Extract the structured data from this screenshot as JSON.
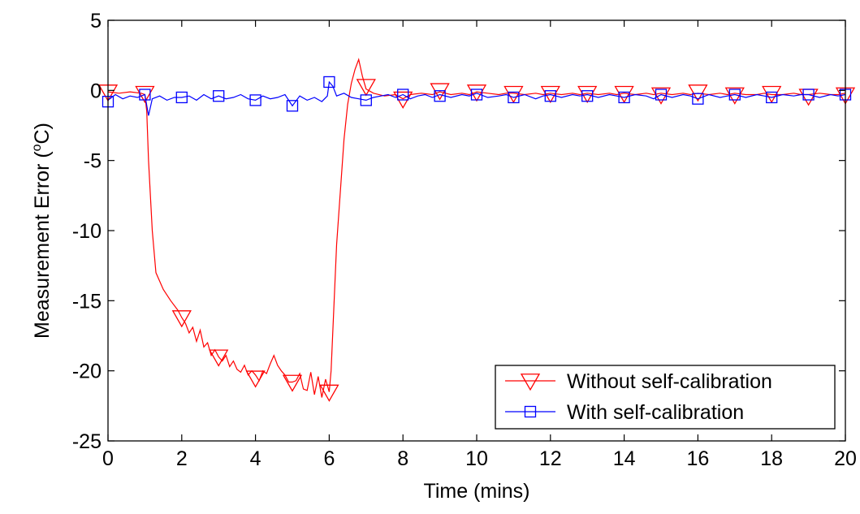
{
  "chart_data": {
    "type": "line",
    "xlabel": "Time (mins)",
    "ylabel_prefix": "Measurement Error (",
    "ylabel_sup": "o",
    "ylabel_suffix": "C)",
    "xlim": [
      0,
      20
    ],
    "ylim": [
      -25,
      5
    ],
    "xticks": [
      0,
      2,
      4,
      6,
      8,
      10,
      12,
      14,
      16,
      18,
      20
    ],
    "yticks": [
      5,
      0,
      -5,
      -10,
      -15,
      -20,
      -25
    ],
    "grid": false,
    "legend_position": "bottom-right",
    "series": [
      {
        "name": "Without self-calibration",
        "color": "#ff0000",
        "marker": "triangle-down",
        "x": [
          0,
          0.3,
          0.6,
          0.9,
          1.0,
          1.05,
          1.1,
          1.2,
          1.3,
          1.5,
          1.7,
          1.9,
          2.0,
          2.1,
          2.2,
          2.3,
          2.4,
          2.5,
          2.6,
          2.7,
          2.8,
          2.9,
          3.0,
          3.1,
          3.2,
          3.3,
          3.4,
          3.5,
          3.6,
          3.7,
          3.8,
          3.9,
          4.0,
          4.1,
          4.2,
          4.3,
          4.4,
          4.5,
          4.6,
          4.7,
          4.8,
          4.9,
          5.0,
          5.1,
          5.2,
          5.3,
          5.4,
          5.5,
          5.6,
          5.7,
          5.8,
          5.9,
          6.0,
          6.05,
          6.2,
          6.4,
          6.5,
          6.6,
          6.7,
          6.8,
          6.9,
          7.0,
          7.2,
          7.5,
          7.8,
          8.0,
          8.2,
          8.5,
          8.8,
          9.0,
          9.3,
          9.6,
          9.8,
          10.0,
          10.3,
          10.6,
          10.8,
          11.0,
          11.3,
          11.6,
          11.8,
          12.0,
          12.3,
          12.6,
          12.8,
          13.0,
          13.3,
          13.6,
          13.8,
          14.0,
          14.3,
          14.6,
          14.8,
          15.0,
          15.3,
          15.6,
          15.8,
          16.0,
          16.3,
          16.6,
          16.8,
          17.0,
          17.3,
          17.6,
          17.8,
          18.0,
          18.3,
          18.6,
          18.8,
          19.0,
          19.3,
          19.6,
          19.8,
          20.0
        ],
        "y": [
          -0.1,
          -0.2,
          -0.1,
          -0.2,
          -0.3,
          -1.5,
          -5.0,
          -10.0,
          -13.0,
          -14.2,
          -15.0,
          -15.7,
          -16.2,
          -16.6,
          -17.3,
          -16.9,
          -17.9,
          -17.1,
          -18.3,
          -18.0,
          -18.9,
          -18.5,
          -19.0,
          -19.3,
          -18.9,
          -19.7,
          -19.3,
          -19.9,
          -20.1,
          -19.6,
          -20.3,
          -20.0,
          -20.3,
          -20.7,
          -20.0,
          -20.2,
          -19.5,
          -18.9,
          -19.6,
          -20.0,
          -20.3,
          -20.8,
          -20.8,
          -20.7,
          -20.2,
          -21.3,
          -21.4,
          -20.1,
          -21.7,
          -20.4,
          -21.9,
          -20.6,
          -21.5,
          -20.0,
          -11.0,
          -3.5,
          -1.0,
          0.5,
          1.5,
          2.2,
          1.0,
          0.1,
          -0.2,
          -0.4,
          -0.3,
          -0.6,
          -0.3,
          -0.2,
          -0.3,
          -0.1,
          -0.3,
          -0.2,
          -0.3,
          -0.1,
          -0.2,
          -0.3,
          -0.2,
          -0.2,
          -0.3,
          -0.2,
          -0.3,
          -0.2,
          -0.3,
          -0.2,
          -0.3,
          -0.2,
          -0.3,
          -0.2,
          -0.3,
          -0.2,
          -0.3,
          -0.2,
          -0.3,
          -0.2,
          -0.3,
          -0.2,
          -0.3,
          -0.2,
          -0.3,
          -0.2,
          -0.3,
          -0.2,
          -0.3,
          -0.3,
          -0.2,
          -0.3,
          -0.3,
          -0.2,
          -0.3,
          -0.3,
          -0.2,
          -0.3,
          -0.3,
          -0.2
        ],
        "marker_x": [
          0,
          1,
          2,
          3,
          4,
          5,
          6,
          7,
          8,
          9,
          10,
          11,
          12,
          13,
          14,
          15,
          16,
          17,
          18,
          19,
          20
        ],
        "marker_y": [
          -0.1,
          -0.2,
          -16.2,
          -19.0,
          -20.5,
          -20.8,
          -21.5,
          0.3,
          -0.6,
          0.0,
          -0.1,
          -0.2,
          -0.2,
          -0.2,
          -0.2,
          -0.3,
          -0.1,
          -0.3,
          -0.2,
          -0.4,
          -0.3
        ]
      },
      {
        "name": "With self-calibration",
        "color": "#0000ff",
        "marker": "square",
        "x": [
          0,
          0.2,
          0.4,
          0.6,
          0.8,
          1.0,
          1.1,
          1.2,
          1.4,
          1.6,
          1.8,
          2.0,
          2.2,
          2.4,
          2.6,
          2.8,
          3.0,
          3.2,
          3.4,
          3.6,
          3.8,
          4.0,
          4.2,
          4.4,
          4.6,
          4.8,
          5.0,
          5.2,
          5.4,
          5.6,
          5.8,
          5.95,
          6.0,
          6.1,
          6.2,
          6.4,
          6.6,
          6.8,
          7.0,
          7.2,
          7.4,
          7.6,
          7.8,
          8.0,
          8.2,
          8.4,
          8.6,
          8.8,
          9.0,
          9.3,
          9.6,
          9.8,
          10.0,
          10.3,
          10.6,
          10.8,
          11.0,
          11.3,
          11.6,
          11.8,
          12.0,
          12.3,
          12.6,
          12.8,
          13.0,
          13.3,
          13.6,
          13.8,
          14.0,
          14.3,
          14.6,
          14.8,
          15.0,
          15.3,
          15.6,
          15.8,
          16.0,
          16.3,
          16.6,
          16.8,
          17.0,
          17.3,
          17.6,
          17.8,
          18.0,
          18.3,
          18.6,
          18.8,
          19.0,
          19.3,
          19.6,
          19.8,
          20.0
        ],
        "y": [
          -0.7,
          -0.3,
          -0.6,
          -0.4,
          -0.5,
          -0.3,
          -1.8,
          -0.6,
          -0.4,
          -0.7,
          -0.5,
          -0.5,
          -0.4,
          -0.7,
          -0.3,
          -0.6,
          -0.4,
          -0.6,
          -0.5,
          -0.3,
          -0.6,
          -0.7,
          -0.4,
          -0.6,
          -0.5,
          -0.3,
          -1.1,
          -0.4,
          -0.7,
          -0.5,
          -0.8,
          -0.4,
          0.6,
          0.3,
          -0.4,
          -0.2,
          -0.5,
          -0.6,
          -0.7,
          -0.5,
          -0.4,
          -0.3,
          -0.5,
          -0.3,
          -0.6,
          -0.4,
          -0.3,
          -0.5,
          -0.3,
          -0.5,
          -0.3,
          -0.4,
          -0.2,
          -0.5,
          -0.4,
          -0.3,
          -0.5,
          -0.3,
          -0.6,
          -0.4,
          -0.3,
          -0.5,
          -0.3,
          -0.4,
          -0.3,
          -0.5,
          -0.3,
          -0.4,
          -0.5,
          -0.3,
          -0.4,
          -0.6,
          -0.3,
          -0.5,
          -0.3,
          -0.4,
          -0.6,
          -0.3,
          -0.5,
          -0.4,
          -0.3,
          -0.5,
          -0.3,
          -0.4,
          -0.5,
          -0.3,
          -0.4,
          -0.3,
          -0.3,
          -0.5,
          -0.3,
          -0.4,
          -0.3
        ],
        "marker_x": [
          0,
          1,
          2,
          3,
          4,
          5,
          6,
          7,
          8,
          9,
          10,
          11,
          12,
          13,
          14,
          15,
          16,
          17,
          18,
          19,
          20
        ],
        "marker_y": [
          -0.8,
          -0.3,
          -0.5,
          -0.4,
          -0.7,
          -1.1,
          0.6,
          -0.7,
          -0.3,
          -0.4,
          -0.3,
          -0.5,
          -0.4,
          -0.4,
          -0.5,
          -0.3,
          -0.6,
          -0.3,
          -0.5,
          -0.3,
          -0.3
        ]
      }
    ]
  }
}
